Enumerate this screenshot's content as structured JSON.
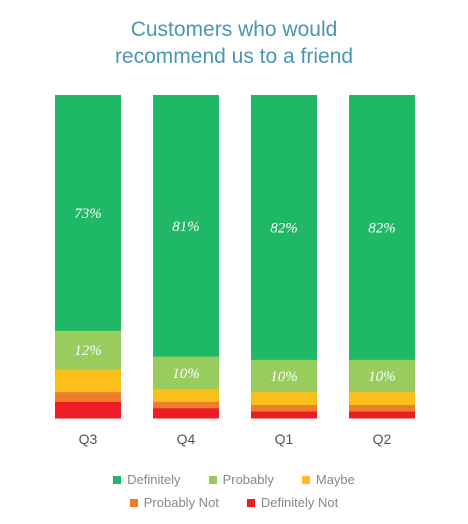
{
  "chart_data": {
    "type": "bar",
    "stacked": true,
    "title": "Customers who would recommend us to a friend",
    "title_lines": [
      "Customers who would",
      "recommend us to a friend"
    ],
    "categories": [
      "Q3",
      "Q4",
      "Q1",
      "Q2"
    ],
    "series": [
      {
        "name": "Definitely",
        "color": "#1fb866",
        "values": [
          73,
          81,
          82,
          82
        ]
      },
      {
        "name": "Probably",
        "color": "#98cc5c",
        "values": [
          12,
          10,
          10,
          10
        ]
      },
      {
        "name": "Maybe",
        "color": "#fbbf1a",
        "values": [
          7,
          4,
          4,
          4
        ]
      },
      {
        "name": "Probably Not",
        "color": "#ee7d2f",
        "values": [
          3,
          2,
          2,
          2
        ]
      },
      {
        "name": "Definitely Not",
        "color": "#ee1c23",
        "values": [
          5,
          3,
          2,
          2
        ]
      }
    ],
    "bar_labels": [
      [
        "73%",
        "12%",
        "",
        "",
        ""
      ],
      [
        "81%",
        "10%",
        "",
        "",
        ""
      ],
      [
        "82%",
        "10%",
        "",
        "",
        ""
      ],
      [
        "82%",
        "10%",
        "",
        "",
        ""
      ]
    ],
    "ylim": [
      0,
      100
    ],
    "grid": false,
    "legend_position": "bottom"
  }
}
